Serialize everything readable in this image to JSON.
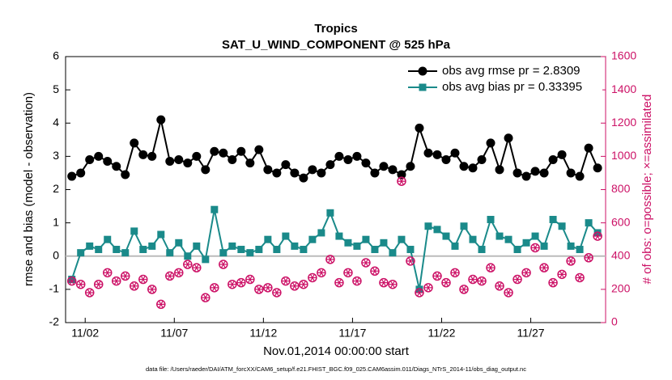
{
  "chart_data": {
    "type": "line",
    "title": "Tropics",
    "subtitle": "SAT_U_WIND_COMPONENT @ 525 hPa",
    "xlabel": "Nov.01,2014 00:00:00 start",
    "ylabel": "rmse and bias (model - observation)",
    "y2label": "# of obs: o=possible; ×=assimilated",
    "footnote": "data file: /Users/raeder/DAI/ATM_forcXX/CAM6_setup/f.e21.FHIST_BGC.f09_025.CAM6assim.011/Diags_NTrS_2014-11/obs_diag_output.nc",
    "xlim": [
      -0.1,
      30.2
    ],
    "xticks": [
      {
        "value": 1,
        "label": "11/02"
      },
      {
        "value": 6,
        "label": "11/07"
      },
      {
        "value": 11,
        "label": "11/12"
      },
      {
        "value": 16,
        "label": "11/17"
      },
      {
        "value": 21,
        "label": "11/22"
      },
      {
        "value": 26,
        "label": "11/27"
      }
    ],
    "ylim": [
      -2,
      6
    ],
    "yticks": [
      -2,
      -1,
      0,
      1,
      2,
      3,
      4,
      5,
      6
    ],
    "y2lim": [
      0,
      1600
    ],
    "y2ticks": [
      0,
      200,
      400,
      600,
      800,
      1000,
      1200,
      1400,
      1600
    ],
    "y2color": "#cc1166",
    "legend": "upper right",
    "x": [
      0.25,
      0.75,
      1.25,
      1.75,
      2.25,
      2.75,
      3.25,
      3.75,
      4.25,
      4.75,
      5.25,
      5.75,
      6.25,
      6.75,
      7.25,
      7.75,
      8.25,
      8.75,
      9.25,
      9.75,
      10.25,
      10.75,
      11.25,
      11.75,
      12.25,
      12.75,
      13.25,
      13.75,
      14.25,
      14.75,
      15.25,
      15.75,
      16.25,
      16.75,
      17.25,
      17.75,
      18.25,
      18.75,
      19.25,
      19.75,
      20.25,
      20.75,
      21.25,
      21.75,
      22.25,
      22.75,
      23.25,
      23.75,
      24.25,
      24.75,
      25.25,
      25.75,
      26.25,
      26.75,
      27.25,
      27.75,
      28.25,
      28.75,
      29.25,
      29.75
    ],
    "series": [
      {
        "name": "obs avg rmse pr = 2.8309",
        "color": "#000000",
        "marker": "circle",
        "values": [
          2.4,
          2.5,
          2.9,
          3.0,
          2.85,
          2.7,
          2.45,
          3.4,
          3.05,
          3.0,
          4.1,
          2.85,
          2.9,
          2.8,
          3.0,
          2.6,
          3.15,
          3.1,
          2.9,
          3.15,
          2.8,
          3.2,
          2.6,
          2.5,
          2.75,
          2.5,
          2.35,
          2.6,
          2.5,
          2.75,
          3.0,
          2.9,
          3.0,
          2.8,
          2.5,
          2.7,
          2.6,
          2.45,
          2.7,
          3.85,
          3.1,
          3.05,
          2.9,
          3.1,
          2.7,
          2.65,
          2.9,
          3.4,
          2.6,
          3.55,
          2.5,
          2.4,
          2.55,
          2.5,
          2.9,
          3.05,
          2.5,
          2.4,
          3.25,
          2.65
        ]
      },
      {
        "name": "obs avg bias pr = 0.33395",
        "color": "#1a8a8a",
        "marker": "square",
        "values": [
          -0.7,
          0.1,
          0.3,
          0.2,
          0.5,
          0.2,
          0.1,
          0.75,
          0.2,
          0.3,
          0.65,
          0.1,
          0.4,
          0.0,
          0.3,
          -0.1,
          1.4,
          0.1,
          0.3,
          0.2,
          0.1,
          0.2,
          0.5,
          0.2,
          0.6,
          0.3,
          0.2,
          0.5,
          0.7,
          1.3,
          0.6,
          0.4,
          0.3,
          0.5,
          0.2,
          0.4,
          0.1,
          0.5,
          0.2,
          -1.0,
          0.9,
          0.8,
          0.6,
          0.3,
          0.9,
          0.5,
          0.2,
          1.1,
          0.6,
          0.5,
          0.2,
          0.4,
          0.6,
          0.3,
          1.1,
          0.9,
          0.3,
          0.2,
          1.0,
          0.7
        ]
      },
      {
        "color": "#cc1166",
        "marker": "circle-asterisk",
        "axis": "y2",
        "values": [
          250,
          230,
          180,
          230,
          300,
          250,
          280,
          220,
          260,
          200,
          110,
          280,
          300,
          350,
          330,
          150,
          210,
          350,
          230,
          240,
          260,
          200,
          210,
          180,
          250,
          220,
          230,
          270,
          300,
          380,
          240,
          300,
          250,
          360,
          310,
          240,
          230,
          850,
          370,
          180,
          210,
          280,
          240,
          300,
          200,
          260,
          250,
          330,
          220,
          180,
          260,
          300,
          450,
          330,
          240,
          290,
          370,
          270,
          390,
          520
        ]
      }
    ]
  }
}
